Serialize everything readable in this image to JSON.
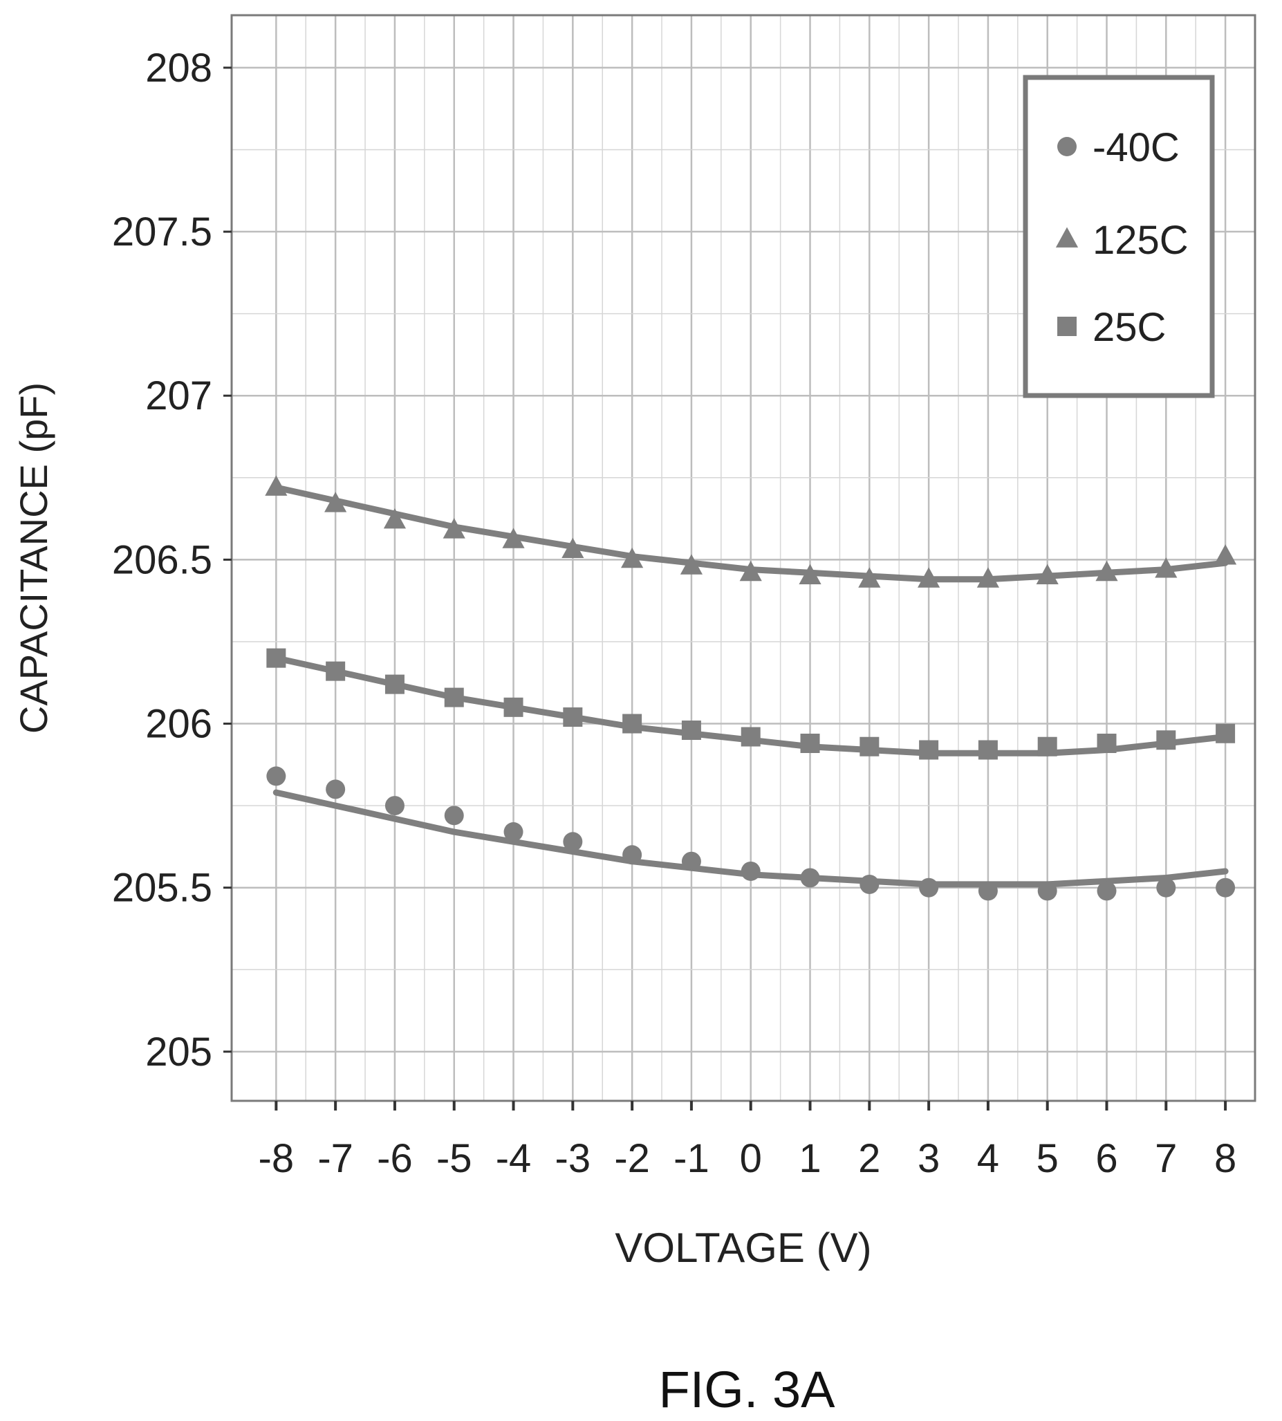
{
  "figure_label": "FIG. 3A",
  "chart_data": {
    "type": "scatter",
    "xlabel": "VOLTAGE (V)",
    "ylabel": "CAPACITANCE (pF)",
    "x": [
      -8,
      -7,
      -6,
      -5,
      -4,
      -3,
      -2,
      -1,
      0,
      1,
      2,
      3,
      4,
      5,
      6,
      7,
      8
    ],
    "xticks": [
      "-8",
      "-7",
      "-6",
      "-5",
      "-4",
      "-3",
      "-2",
      "-1",
      "0",
      "1",
      "2",
      "3",
      "4",
      "5",
      "6",
      "7",
      "8"
    ],
    "yticks": [
      "205",
      "205.5",
      "206",
      "206.5",
      "207",
      "207.5",
      "208"
    ],
    "ylim": [
      204.85,
      208.16
    ],
    "xlim": [
      -8.75,
      8.5
    ],
    "grid": true,
    "fit_lines": true,
    "legend_position": "top-right",
    "series": [
      {
        "name": "-40C",
        "marker": "circle",
        "color": "#7f7f7f",
        "values": [
          205.84,
          205.8,
          205.75,
          205.72,
          205.67,
          205.64,
          205.6,
          205.58,
          205.55,
          205.53,
          205.51,
          205.5,
          205.49,
          205.49,
          205.49,
          205.5,
          205.5
        ],
        "fit": [
          205.79,
          205.75,
          205.71,
          205.67,
          205.64,
          205.61,
          205.58,
          205.56,
          205.54,
          205.53,
          205.52,
          205.51,
          205.51,
          205.51,
          205.52,
          205.53,
          205.55
        ]
      },
      {
        "name": "125C",
        "marker": "triangle",
        "color": "#7f7f7f",
        "values": [
          206.72,
          206.67,
          206.62,
          206.59,
          206.56,
          206.53,
          206.5,
          206.48,
          206.46,
          206.45,
          206.44,
          206.44,
          206.44,
          206.45,
          206.46,
          206.47,
          206.51
        ],
        "fit": [
          206.72,
          206.68,
          206.64,
          206.6,
          206.57,
          206.54,
          206.51,
          206.49,
          206.47,
          206.46,
          206.45,
          206.44,
          206.44,
          206.45,
          206.46,
          206.47,
          206.49
        ]
      },
      {
        "name": "25C",
        "marker": "square",
        "color": "#7f7f7f",
        "values": [
          206.2,
          206.16,
          206.12,
          206.08,
          206.05,
          206.02,
          206.0,
          205.98,
          205.96,
          205.94,
          205.93,
          205.92,
          205.92,
          205.93,
          205.94,
          205.95,
          205.97
        ],
        "fit": [
          206.2,
          206.16,
          206.12,
          206.08,
          206.05,
          206.02,
          205.99,
          205.97,
          205.95,
          205.93,
          205.92,
          205.91,
          205.91,
          205.91,
          205.92,
          205.94,
          205.96
        ]
      }
    ]
  }
}
